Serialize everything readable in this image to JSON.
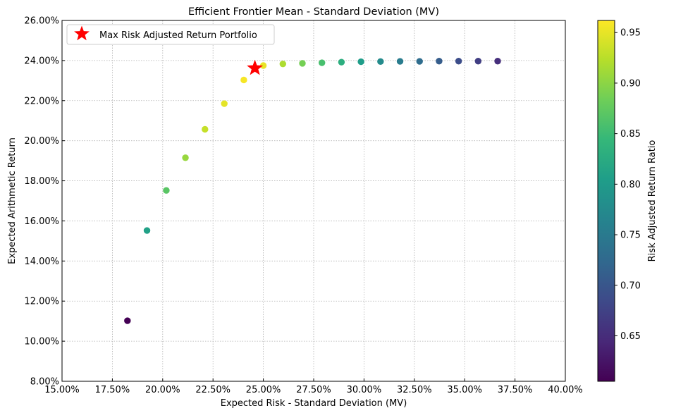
{
  "chart_data": {
    "type": "scatter",
    "title": "Efficient Frontier Mean - Standard Deviation (MV)",
    "xlabel": "Expected Risk - Standard Deviation (MV)",
    "ylabel": "Expected Arithmetic Return",
    "xlim": [
      0.15,
      0.4
    ],
    "ylim": [
      0.08,
      0.26
    ],
    "x_ticks": [
      0.15,
      0.175,
      0.2,
      0.225,
      0.25,
      0.275,
      0.3,
      0.325,
      0.35,
      0.375,
      0.4
    ],
    "x_tick_labels": [
      "15.00%",
      "17.50%",
      "20.00%",
      "22.50%",
      "25.00%",
      "27.50%",
      "30.00%",
      "32.50%",
      "35.00%",
      "37.50%",
      "40.00%"
    ],
    "y_ticks": [
      0.08,
      0.1,
      0.12,
      0.14,
      0.16,
      0.18,
      0.2,
      0.22,
      0.24,
      0.26
    ],
    "y_tick_labels": [
      "8.00%",
      "10.00%",
      "12.00%",
      "14.00%",
      "16.00%",
      "18.00%",
      "20.00%",
      "22.00%",
      "24.00%",
      "26.00%"
    ],
    "grid": true,
    "legend_position": "top-left",
    "colormap": "viridis",
    "colorbar": {
      "label": "Risk Adjusted Return Ratio",
      "min": 0.605,
      "max": 0.962,
      "ticks": [
        0.65,
        0.7,
        0.75,
        0.8,
        0.85,
        0.9,
        0.95
      ],
      "tick_labels": [
        "0.65",
        "0.70",
        "0.75",
        "0.80",
        "0.85",
        "0.90",
        "0.95"
      ]
    },
    "points": [
      {
        "x": 0.1825,
        "y": 0.1102,
        "c": 0.605
      },
      {
        "x": 0.1922,
        "y": 0.1552,
        "c": 0.808
      },
      {
        "x": 0.2018,
        "y": 0.1752,
        "c": 0.868
      },
      {
        "x": 0.2113,
        "y": 0.1915,
        "c": 0.906
      },
      {
        "x": 0.221,
        "y": 0.2057,
        "c": 0.931
      },
      {
        "x": 0.2306,
        "y": 0.2185,
        "c": 0.948
      },
      {
        "x": 0.2403,
        "y": 0.2303,
        "c": 0.958
      },
      {
        "x": 0.25,
        "y": 0.2375,
        "c": 0.95
      },
      {
        "x": 0.2597,
        "y": 0.2383,
        "c": 0.918
      },
      {
        "x": 0.2694,
        "y": 0.2386,
        "c": 0.886
      },
      {
        "x": 0.2791,
        "y": 0.2389,
        "c": 0.856
      },
      {
        "x": 0.2888,
        "y": 0.2392,
        "c": 0.828
      },
      {
        "x": 0.2985,
        "y": 0.2394,
        "c": 0.802
      },
      {
        "x": 0.3082,
        "y": 0.2395,
        "c": 0.777
      },
      {
        "x": 0.3179,
        "y": 0.2396,
        "c": 0.754
      },
      {
        "x": 0.3276,
        "y": 0.2396,
        "c": 0.731
      },
      {
        "x": 0.3373,
        "y": 0.2397,
        "c": 0.71
      },
      {
        "x": 0.347,
        "y": 0.2397,
        "c": 0.69
      },
      {
        "x": 0.3567,
        "y": 0.2397,
        "c": 0.671
      },
      {
        "x": 0.3664,
        "y": 0.2397,
        "c": 0.653
      }
    ],
    "highlight": {
      "label": "Max Risk Adjusted Return Portfolio",
      "x": 0.2458,
      "y": 0.2362,
      "marker": "star",
      "color": "#ff0000"
    }
  }
}
